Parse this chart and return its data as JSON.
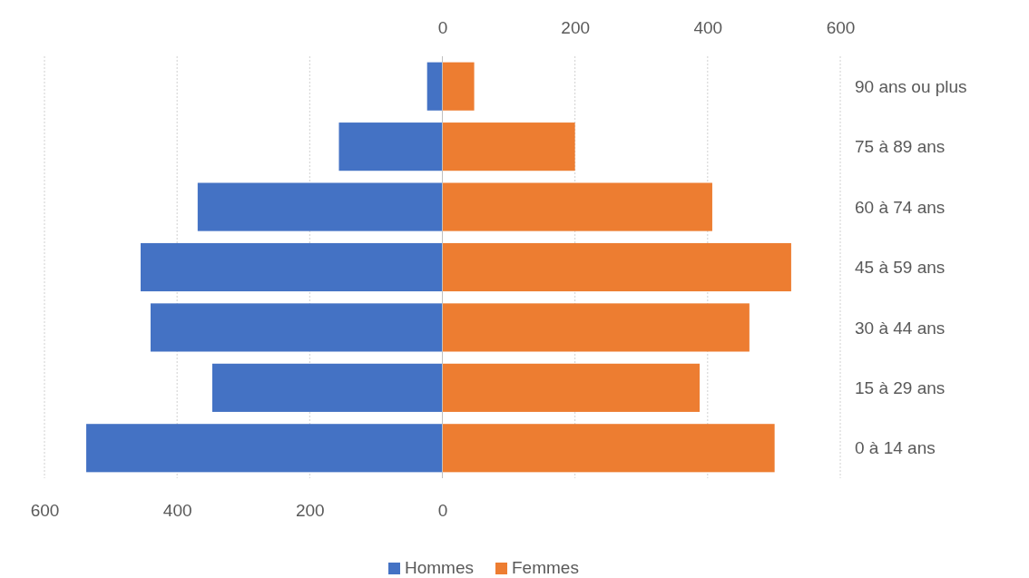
{
  "chart_data": {
    "type": "bar",
    "orientation": "horizontal",
    "stacked": true,
    "categories": [
      "90 ans ou plus",
      "75 à 89 ans",
      "60 à 74 ans",
      "45 à 59 ans",
      "30 à 44 ans",
      "15 à 29 ans",
      "0 à 14 ans"
    ],
    "series": [
      {
        "name": "Hommes",
        "color": "#4472c4",
        "values": [
          -23,
          -156,
          -369,
          -455,
          -440,
          -347,
          -537
        ]
      },
      {
        "name": "Femmes",
        "color": "#ed7d31",
        "values": [
          48,
          200,
          407,
          526,
          463,
          388,
          501
        ]
      }
    ],
    "xlim": [
      -600,
      600
    ],
    "xticks": [
      {
        "value": -600,
        "label": "600"
      },
      {
        "value": -400,
        "label": "400"
      },
      {
        "value": -200,
        "label": "200"
      },
      0
    ],
    "x2lim": [
      -600,
      600
    ],
    "x2ticks": [
      0,
      200,
      400,
      600
    ],
    "grid": "x",
    "legend": "bottom"
  }
}
